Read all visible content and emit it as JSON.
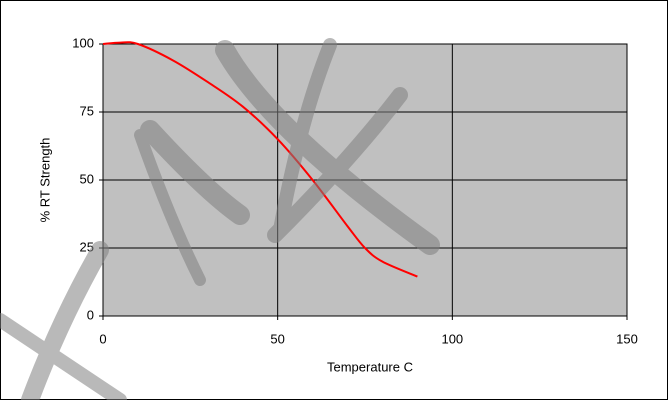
{
  "chart_data": {
    "type": "line",
    "x_label": "Temperature C",
    "y_label": "% RT Strength",
    "x": [
      0,
      5,
      10,
      20,
      30,
      40,
      50,
      60,
      70,
      75,
      80,
      90
    ],
    "series": [
      {
        "color": "#ff0000",
        "values": [
          100,
          100.5,
          100,
          94,
          86,
          77,
          65,
          50,
          33,
          25,
          20,
          14.5
        ]
      }
    ],
    "xlim": [
      0,
      150
    ],
    "xticks": [
      0,
      50,
      100,
      150
    ],
    "ylim": [
      0,
      100
    ],
    "yticks": [
      0,
      25,
      50,
      75,
      100
    ],
    "grid": true,
    "plot_background": "#c0c0c0"
  }
}
